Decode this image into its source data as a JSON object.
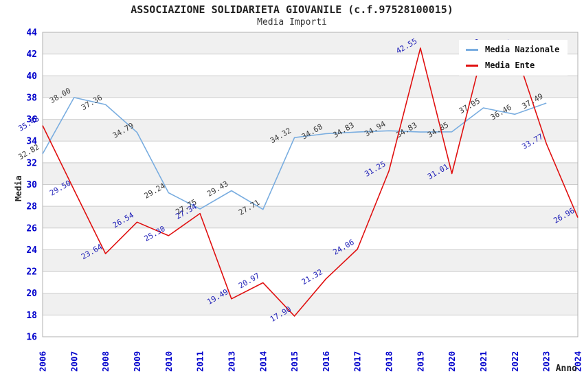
{
  "header": {
    "title": "ASSOCIAZIONE SOLIDARIETA GIOVANILE (c.f.97528100015)",
    "subtitle": "Media Importi"
  },
  "legend": {
    "position": "top-right",
    "items": [
      {
        "label": "Media Nazionale",
        "color": "#79ade0"
      },
      {
        "label": "Media Ente",
        "color": "#e01010"
      }
    ]
  },
  "chart_data": {
    "type": "line",
    "title": "ASSOCIAZIONE SOLIDARIETA GIOVANILE (c.f.97528100015)",
    "subtitle": "Media Importi",
    "xlabel": "Anno",
    "ylabel": "Media",
    "categories": [
      "2006",
      "2007",
      "2008",
      "2009",
      "2010",
      "2011",
      "2013",
      "2014",
      "2015",
      "2016",
      "2017",
      "2018",
      "2019",
      "2020",
      "2021",
      "2022",
      "2023",
      "2024"
    ],
    "ylim": [
      16,
      44
    ],
    "ytick_step": 2,
    "grid": "horizontal gridlines with alternating gray/white bands",
    "legend_position": "top-right",
    "series": [
      {
        "name": "Media Nazionale",
        "color": "#79ade0",
        "label_color": "#3a3a3a",
        "values": [
          32.82,
          38.0,
          37.36,
          34.79,
          29.24,
          27.75,
          29.43,
          27.71,
          34.32,
          34.68,
          34.83,
          34.94,
          34.83,
          34.85,
          37.05,
          36.46,
          37.49,
          null
        ]
      },
      {
        "name": "Media Ente",
        "color": "#e01010",
        "label_color": "#2222b8",
        "values": [
          35.43,
          29.5,
          23.64,
          26.54,
          25.3,
          27.34,
          19.49,
          20.97,
          17.9,
          21.32,
          24.06,
          31.25,
          42.55,
          31.01,
          42.5,
          42.44,
          33.77,
          26.96
        ]
      }
    ],
    "style": {
      "tick_label_color": "#0000cc",
      "band_fill": "#f0f0f0",
      "gridline_color": "#cccccc",
      "border_color": "#b0b0b0",
      "axis_title_color": "#222222"
    }
  }
}
